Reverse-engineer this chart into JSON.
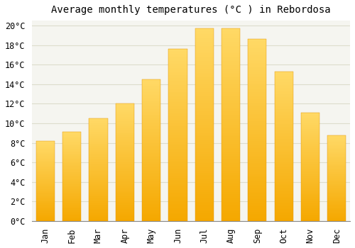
{
  "title": "Average monthly temperatures (°C ) in Rebordosa",
  "months": [
    "Jan",
    "Feb",
    "Mar",
    "Apr",
    "May",
    "Jun",
    "Jul",
    "Aug",
    "Sep",
    "Oct",
    "Nov",
    "Dec"
  ],
  "values": [
    8.2,
    9.1,
    10.5,
    12.0,
    14.5,
    17.6,
    19.7,
    19.7,
    18.6,
    15.3,
    11.1,
    8.8
  ],
  "bar_color_bottom": "#F5A800",
  "bar_color_top": "#FFD966",
  "bar_edge_color": "#E09000",
  "background_color": "#FFFFFF",
  "plot_bg_color": "#F5F5F0",
  "grid_color": "#DDDDCC",
  "ylim": [
    0,
    20.5
  ],
  "yticks": [
    0,
    2,
    4,
    6,
    8,
    10,
    12,
    14,
    16,
    18,
    20
  ],
  "title_fontsize": 10,
  "tick_fontsize": 8.5,
  "tick_font_family": "monospace",
  "bar_width": 0.7
}
